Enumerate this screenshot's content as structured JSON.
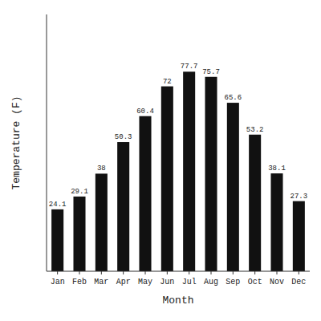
{
  "chart_data": {
    "type": "bar",
    "categories": [
      "Jan",
      "Feb",
      "Mar",
      "Apr",
      "May",
      "Jun",
      "Jul",
      "Aug",
      "Sep",
      "Oct",
      "Nov",
      "Dec"
    ],
    "values": [
      24.1,
      29.1,
      38.0,
      50.3,
      60.4,
      72.0,
      77.7,
      75.7,
      65.6,
      53.2,
      38.1,
      27.3
    ],
    "color": "#111111",
    "xlabel": "Month",
    "ylabel": "Temperature (F)",
    "ylim": [
      0,
      100
    ],
    "data_labels": true,
    "tick_labels": "x"
  }
}
